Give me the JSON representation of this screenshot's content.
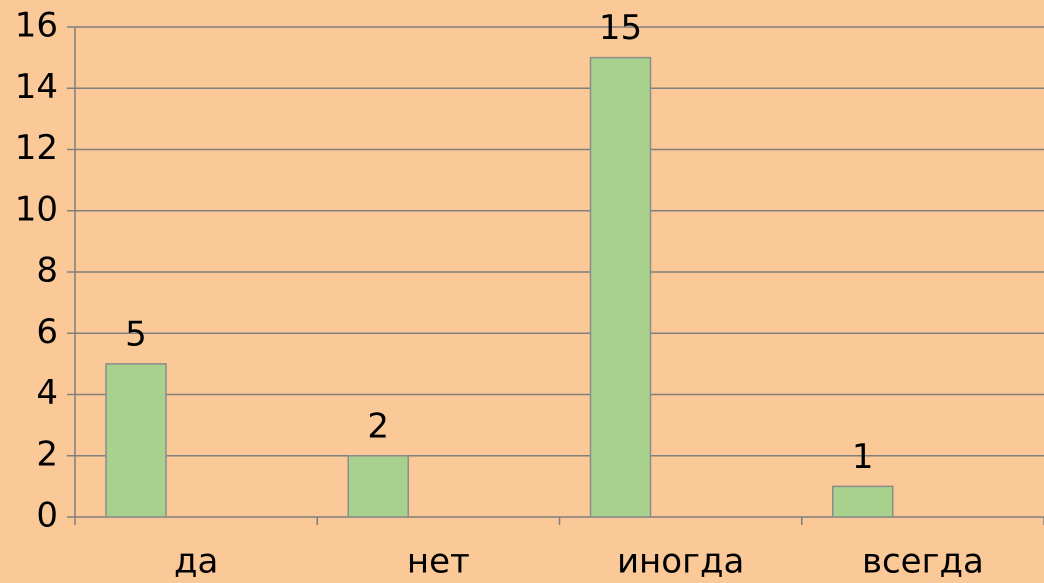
{
  "chart_data": {
    "type": "bar",
    "categories": [
      "да",
      "нет",
      "иногда",
      "всегда"
    ],
    "values": [
      5,
      2,
      15,
      1
    ],
    "color": "#a9d18e",
    "ylim": [
      0,
      16
    ],
    "yticks": [
      0,
      2,
      4,
      6,
      8,
      10,
      12,
      14,
      16
    ],
    "grid": true
  }
}
